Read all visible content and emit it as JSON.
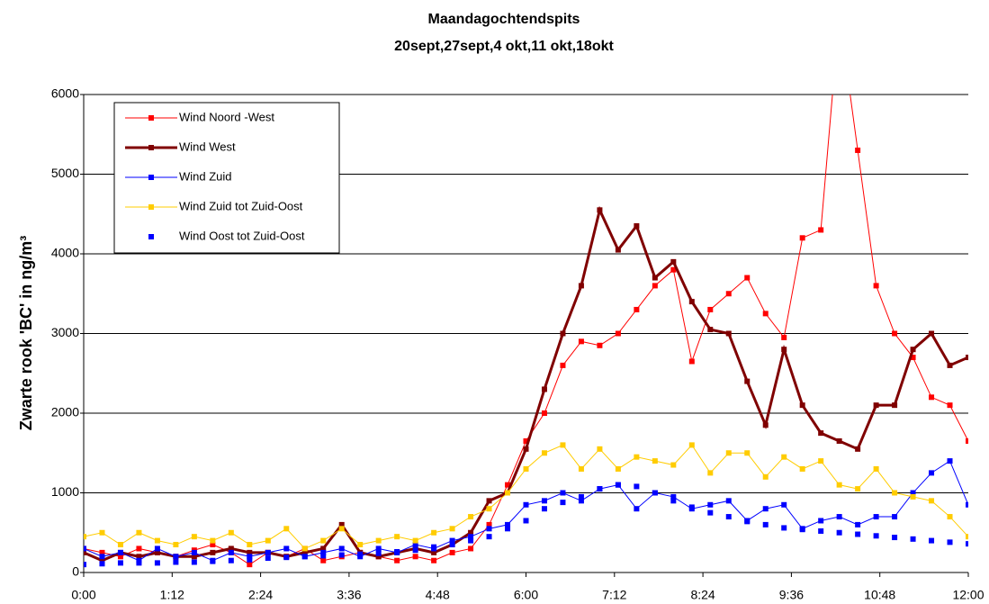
{
  "chart_data": {
    "type": "line",
    "title": "Maandagochtendspits",
    "subtitle": "20sept,27sept,4 okt,11 okt,18okt",
    "y_label": "Zwarte rook 'BC' in ng/m³",
    "x": [
      0,
      15,
      30,
      45,
      60,
      75,
      90,
      105,
      120,
      135,
      150,
      165,
      180,
      195,
      210,
      225,
      240,
      255,
      270,
      285,
      300,
      315,
      330,
      345,
      360,
      375,
      390,
      405,
      420,
      435,
      450,
      465,
      480,
      495,
      510,
      525,
      540,
      555,
      570,
      585,
      600,
      615,
      630,
      645,
      660,
      675,
      690,
      705,
      720
    ],
    "xlim": [
      0,
      720
    ],
    "xticks": [
      {
        "value": 0,
        "label": "0:00"
      },
      {
        "value": 72,
        "label": "1:12"
      },
      {
        "value": 144,
        "label": "2:24"
      },
      {
        "value": 216,
        "label": "3:36"
      },
      {
        "value": 288,
        "label": "4:48"
      },
      {
        "value": 360,
        "label": "6:00"
      },
      {
        "value": 432,
        "label": "7:12"
      },
      {
        "value": 504,
        "label": "8:24"
      },
      {
        "value": 576,
        "label": "9:36"
      },
      {
        "value": 648,
        "label": "10:48"
      },
      {
        "value": 720,
        "label": "12:00"
      }
    ],
    "ylim": [
      0,
      6000
    ],
    "yticks": [
      0,
      1000,
      2000,
      3000,
      4000,
      5000,
      6000
    ],
    "grid": true,
    "legend": "upper left",
    "series": [
      {
        "name": "Wind Noord -West",
        "color": "#ff0000",
        "line_width": 1,
        "line": true,
        "values": [
          300,
          250,
          200,
          300,
          250,
          200,
          280,
          350,
          250,
          100,
          250,
          200,
          300,
          150,
          200,
          250,
          200,
          150,
          200,
          150,
          250,
          300,
          600,
          1100,
          1650,
          2000,
          2600,
          2900,
          2850,
          3000,
          3300,
          3600,
          3800,
          2650,
          3300,
          3500,
          3700,
          3250,
          2950,
          4200,
          4300,
          7000,
          5300,
          3600,
          3000,
          2700,
          2200,
          2100,
          1650
        ]
      },
      {
        "name": "Wind West",
        "color": "#800000",
        "line_width": 3,
        "line": true,
        "values": [
          250,
          150,
          250,
          200,
          250,
          200,
          200,
          250,
          300,
          250,
          250,
          200,
          250,
          300,
          600,
          250,
          200,
          250,
          300,
          250,
          350,
          500,
          900,
          1000,
          1550,
          2300,
          3000,
          3600,
          4550,
          4050,
          4350,
          3700,
          3900,
          3400,
          3050,
          3000,
          2400,
          1850,
          2800,
          2100,
          1750,
          1650,
          1550,
          2100,
          2100,
          2800,
          3000,
          2600,
          2700
        ]
      },
      {
        "name": "Wind Zuid",
        "color": "#0000ff",
        "line_width": 1,
        "line": true,
        "values": [
          300,
          200,
          250,
          150,
          300,
          200,
          250,
          150,
          250,
          200,
          250,
          300,
          200,
          250,
          300,
          200,
          300,
          250,
          350,
          300,
          400,
          450,
          550,
          600,
          850,
          900,
          1000,
          900,
          1050,
          1100,
          800,
          1000,
          950,
          800,
          850,
          900,
          650,
          800,
          850,
          550,
          650,
          700,
          600,
          700,
          700,
          1000,
          1250,
          1400,
          850
        ]
      },
      {
        "name": "Wind Zuid tot Zuid-Oost",
        "color": "#ffcc00",
        "line_width": 1,
        "line": true,
        "values": [
          450,
          500,
          350,
          500,
          400,
          350,
          450,
          400,
          500,
          350,
          400,
          550,
          300,
          400,
          550,
          350,
          400,
          450,
          400,
          500,
          550,
          700,
          800,
          1000,
          1300,
          1500,
          1600,
          1300,
          1550,
          1300,
          1450,
          1400,
          1350,
          1600,
          1250,
          1500,
          1500,
          1200,
          1450,
          1300,
          1400,
          1100,
          1050,
          1300,
          1000,
          950,
          900,
          700,
          450
        ]
      },
      {
        "name": "Wind Oost tot Zuid-Oost",
        "color": "#0000ff",
        "line_width": 0,
        "line": false,
        "values": [
          100,
          110,
          120,
          120,
          120,
          130,
          130,
          140,
          150,
          160,
          180,
          190,
          200,
          210,
          220,
          230,
          240,
          260,
          280,
          320,
          350,
          400,
          450,
          550,
          650,
          800,
          880,
          950,
          1050,
          1100,
          1080,
          1000,
          900,
          820,
          750,
          700,
          640,
          600,
          560,
          540,
          520,
          500,
          480,
          460,
          440,
          420,
          400,
          380,
          360
        ]
      }
    ]
  }
}
